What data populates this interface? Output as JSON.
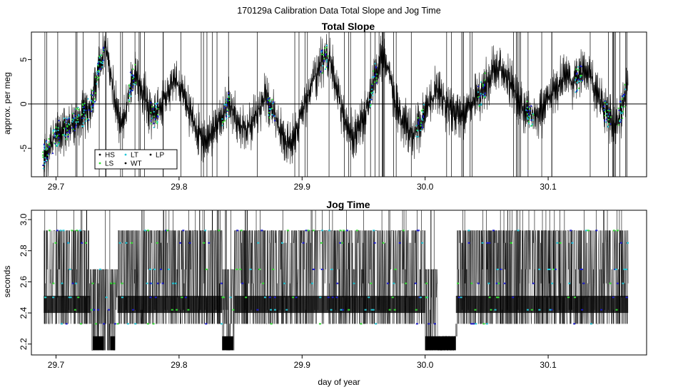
{
  "figure": {
    "title": "170129a   Calibration Data Total Slope and Jog Time",
    "xlabel": "day of year"
  },
  "chart_data": [
    {
      "type": "line",
      "title": "Total Slope",
      "xlabel": "",
      "ylabel": "approx. per meg",
      "xlim": [
        29.68,
        30.18
      ],
      "ylim": [
        -8.2,
        8.1
      ],
      "xticks": [
        29.7,
        29.8,
        29.9,
        30.0,
        30.1
      ],
      "xtick_labels": [
        "29.7",
        "29.8",
        "29.9",
        "30.0",
        "30.1"
      ],
      "yticks": [
        -5,
        0,
        5
      ],
      "ytick_labels": [
        "-5",
        "0",
        "5"
      ],
      "hline": 0,
      "grid": false,
      "legend_position": "bottom-left",
      "legend": [
        {
          "label": "HS",
          "color": "#000000"
        },
        {
          "label": "LT",
          "color": "#22c7d8"
        },
        {
          "label": "LP",
          "color": "#000000"
        },
        {
          "label": "LS",
          "color": "#33dd33"
        },
        {
          "label": "WT",
          "color": "#000000"
        }
      ],
      "x": [
        29.69,
        29.695,
        29.7,
        29.705,
        29.71,
        29.715,
        29.72,
        29.725,
        29.73,
        29.735,
        29.74,
        29.745,
        29.75,
        29.755,
        29.76,
        29.765,
        29.77,
        29.775,
        29.78,
        29.785,
        29.79,
        29.795,
        29.8,
        29.805,
        29.81,
        29.815,
        29.82,
        29.825,
        29.83,
        29.835,
        29.84,
        29.845,
        29.85,
        29.855,
        29.86,
        29.865,
        29.87,
        29.875,
        29.88,
        29.885,
        29.89,
        29.895,
        29.9,
        29.905,
        29.91,
        29.915,
        29.92,
        29.925,
        29.93,
        29.935,
        29.94,
        29.945,
        29.95,
        29.955,
        29.96,
        29.965,
        29.97,
        29.975,
        29.98,
        29.985,
        29.99,
        29.995,
        30.0,
        30.005,
        30.01,
        30.015,
        30.02,
        30.025,
        30.03,
        30.035,
        30.04,
        30.045,
        30.05,
        30.055,
        30.06,
        30.065,
        30.07,
        30.075,
        30.08,
        30.085,
        30.09,
        30.095,
        30.1,
        30.105,
        30.11,
        30.115,
        30.12,
        30.125,
        30.13,
        30.135,
        30.14,
        30.145,
        30.15,
        30.155,
        30.16,
        30.165
      ],
      "series": [
        {
          "color": "#000000",
          "values": [
            -6.0,
            -5.0,
            -3.5,
            -3.0,
            -2.5,
            -2.0,
            -1.5,
            -1.0,
            0.5,
            4.0,
            6.5,
            3.0,
            -1.0,
            -2.0,
            2.0,
            3.5,
            1.5,
            -0.5,
            -1.5,
            0.0,
            1.0,
            2.5,
            2.0,
            0.5,
            -1.5,
            -3.0,
            -4.0,
            -3.5,
            -2.5,
            -1.5,
            0.0,
            -1.0,
            -2.5,
            -3.0,
            -2.0,
            -0.5,
            0.5,
            -0.5,
            -2.0,
            -4.0,
            -4.5,
            -3.0,
            -1.0,
            1.0,
            3.0,
            4.5,
            5.5,
            4.0,
            0.5,
            -2.5,
            -3.5,
            -3.0,
            -1.5,
            0.5,
            3.5,
            5.0,
            4.0,
            0.5,
            -1.5,
            -2.5,
            -3.5,
            -2.5,
            -1.0,
            0.5,
            1.5,
            0.5,
            -0.5,
            -1.0,
            -1.5,
            -0.5,
            0.5,
            1.0,
            2.5,
            3.5,
            4.0,
            3.5,
            2.0,
            0.5,
            -0.5,
            -1.0,
            -1.5,
            -1.0,
            0.5,
            1.5,
            2.5,
            3.0,
            2.5,
            3.0,
            4.0,
            3.0,
            1.0,
            -0.5,
            -1.5,
            -2.5,
            -0.5,
            2.5
          ]
        }
      ]
    },
    {
      "type": "line",
      "title": "Jog Time",
      "xlabel": "day of year",
      "ylabel": "seconds",
      "xlim": [
        29.68,
        30.18
      ],
      "ylim": [
        2.13,
        3.06
      ],
      "xticks": [
        29.7,
        29.8,
        29.9,
        30.0,
        30.1
      ],
      "xtick_labels": [
        "29.7",
        "29.8",
        "29.9",
        "30.0",
        "30.1"
      ],
      "yticks": [
        2.2,
        2.4,
        2.6,
        2.8,
        3.0
      ],
      "ytick_labels": [
        "2.2",
        "2.4",
        "2.6",
        "2.8",
        "3.0"
      ],
      "grid": false,
      "levels": [
        2.33,
        2.42,
        2.5,
        2.59,
        2.68,
        2.85,
        2.93
      ],
      "low_segments": [
        {
          "x_start": 29.73,
          "x_end": 29.739,
          "low": 2.16
        },
        {
          "x_start": 29.744,
          "x_end": 29.748,
          "low": 2.16
        },
        {
          "x_start": 29.835,
          "x_end": 29.844,
          "low": 2.16
        },
        {
          "x_start": 30.0,
          "x_end": 30.025,
          "low": 2.16
        }
      ],
      "gaps": [
        {
          "x_start": 30.01,
          "x_end": 30.026
        }
      ],
      "envelope": [
        {
          "x_start": 29.69,
          "x_end": 29.728,
          "low": 2.33,
          "high": 2.93
        },
        {
          "x_start": 29.728,
          "x_end": 29.75,
          "low": 2.16,
          "high": 2.68
        },
        {
          "x_start": 29.75,
          "x_end": 29.835,
          "low": 2.33,
          "high": 2.93
        },
        {
          "x_start": 29.835,
          "x_end": 29.845,
          "low": 2.16,
          "high": 2.68
        },
        {
          "x_start": 29.845,
          "x_end": 30.0,
          "low": 2.33,
          "high": 2.93
        },
        {
          "x_start": 30.0,
          "x_end": 30.025,
          "low": 2.16,
          "high": 2.68
        },
        {
          "x_start": 30.025,
          "x_end": 30.165,
          "low": 2.33,
          "high": 2.93
        }
      ]
    }
  ]
}
